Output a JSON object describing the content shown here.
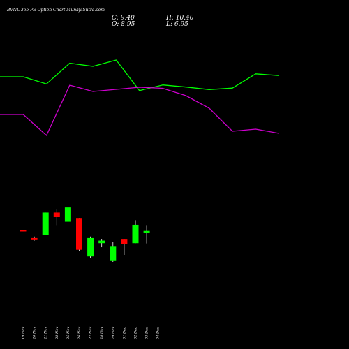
{
  "chart_data": {
    "type": "candlestick",
    "title": "BVNL 365 PE Option Chart MunafaSutra.com",
    "ohlc_readout": {
      "close": "C: 9.40",
      "open": "O: 8.95",
      "high": "H: 10.40",
      "low": "L: 6.95"
    },
    "categories": [
      "19 Nov",
      "20 Nov",
      "21 Nov",
      "22 Nov",
      "25 Nov",
      "26 Nov",
      "27 Nov",
      "28 Nov",
      "29 Nov",
      "01 Dec",
      "02 Dec",
      "03 Dec",
      "04 Dec"
    ],
    "candles": [
      {
        "date": "19 Nov",
        "open": 9.5,
        "high": 9.6,
        "low": 9.3,
        "close": 9.45
      },
      {
        "date": "20 Nov",
        "open": 8.0,
        "high": 8.3,
        "low": 7.5,
        "close": 7.6
      },
      {
        "date": "21 Nov",
        "open": 8.6,
        "high": 13.0,
        "low": 8.6,
        "close": 13.0
      },
      {
        "date": "22 Nov",
        "open": 13.0,
        "high": 13.6,
        "low": 10.4,
        "close": 12.1
      },
      {
        "date": "25 Nov",
        "open": 11.2,
        "high": 16.8,
        "low": 11.2,
        "close": 14.0
      },
      {
        "date": "26 Nov",
        "open": 11.8,
        "high": 11.8,
        "low": 5.5,
        "close": 5.7
      },
      {
        "date": "27 Nov",
        "open": 4.4,
        "high": 8.3,
        "low": 4.1,
        "close": 8.0
      },
      {
        "date": "28 Nov",
        "open": 7.0,
        "high": 7.8,
        "low": 6.2,
        "close": 7.5
      },
      {
        "date": "29 Nov",
        "open": 3.5,
        "high": 7.3,
        "low": 3.2,
        "close": 6.3
      },
      {
        "date": "01 Dec",
        "open": 7.7,
        "high": 7.7,
        "low": 4.7,
        "close": 6.8
      },
      {
        "date": "02 Dec",
        "open": 7.0,
        "high": 11.5,
        "low": 7.0,
        "close": 10.6
      },
      {
        "date": "03 Dec",
        "open": 8.95,
        "high": 10.4,
        "low": 6.95,
        "close": 9.4
      }
    ],
    "candle_ylim": [
      1.0,
      19.5
    ],
    "lines": [
      {
        "color": "#00ff00",
        "values": [
          50.0,
          50.0,
          46.6,
          56.5,
          55.0,
          58.0,
          43.4,
          46.1,
          45.1,
          43.9,
          44.6,
          51.4,
          50.6
        ]
      },
      {
        "color": "#cc00cc",
        "values": [
          32.0,
          32.0,
          22.0,
          46.0,
          43.0,
          44.0,
          45.0,
          44.5,
          41.0,
          35.0,
          24.0,
          25.0,
          23.0
        ]
      }
    ],
    "lines_ylim": [
      0,
      80
    ],
    "colors": {
      "up": "#00ff00",
      "down": "#ff0000",
      "background": "#000000",
      "text": "#ffffff"
    }
  }
}
